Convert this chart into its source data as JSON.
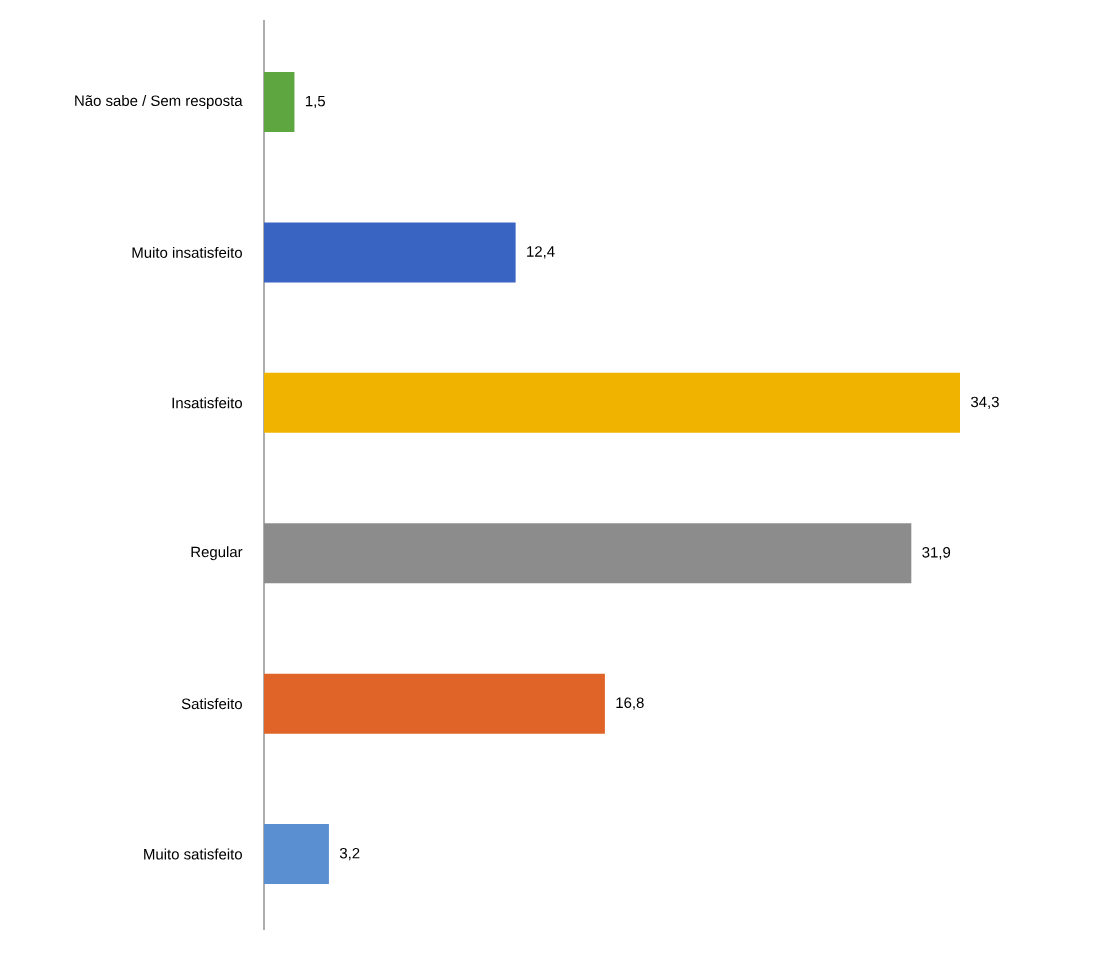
{
  "chart_data": {
    "type": "bar",
    "orientation": "horizontal",
    "categories": [
      "Não sabe / Sem resposta",
      "Muito insatisfeito",
      "Insatisfeito",
      "Regular",
      "Satisfeito",
      "Muito satisfeito"
    ],
    "values": [
      1.5,
      12.4,
      34.3,
      31.9,
      16.8,
      3.2
    ],
    "value_labels": [
      "1,5",
      "12,4",
      "34,3",
      "31,9",
      "16,8",
      "3,2"
    ],
    "colors": [
      "#5ea640",
      "#3a64c2",
      "#f0b400",
      "#8c8c8c",
      "#e06428",
      "#5a90d2"
    ]
  }
}
